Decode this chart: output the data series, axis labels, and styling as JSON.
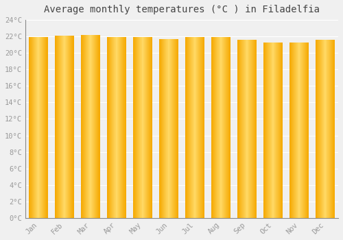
{
  "title": "Average monthly temperatures (°C ) in Filadelfia",
  "months": [
    "Jan",
    "Feb",
    "Mar",
    "Apr",
    "May",
    "Jun",
    "Jul",
    "Aug",
    "Sep",
    "Oct",
    "Nov",
    "Dec"
  ],
  "temperatures": [
    21.9,
    22.1,
    22.2,
    21.9,
    21.9,
    21.7,
    21.9,
    21.9,
    21.6,
    21.3,
    21.3,
    21.6
  ],
  "bar_color_center": "#FFD966",
  "bar_color_edge": "#F5A800",
  "background_color": "#f0f0f0",
  "plot_bg_color": "#f0f0f0",
  "ylim": [
    0,
    24
  ],
  "yticks": [
    0,
    2,
    4,
    6,
    8,
    10,
    12,
    14,
    16,
    18,
    20,
    22,
    24
  ],
  "grid_color": "#e8e8e8",
  "title_fontsize": 10,
  "tick_fontsize": 7.5,
  "tick_color": "#999999",
  "font_family": "monospace"
}
